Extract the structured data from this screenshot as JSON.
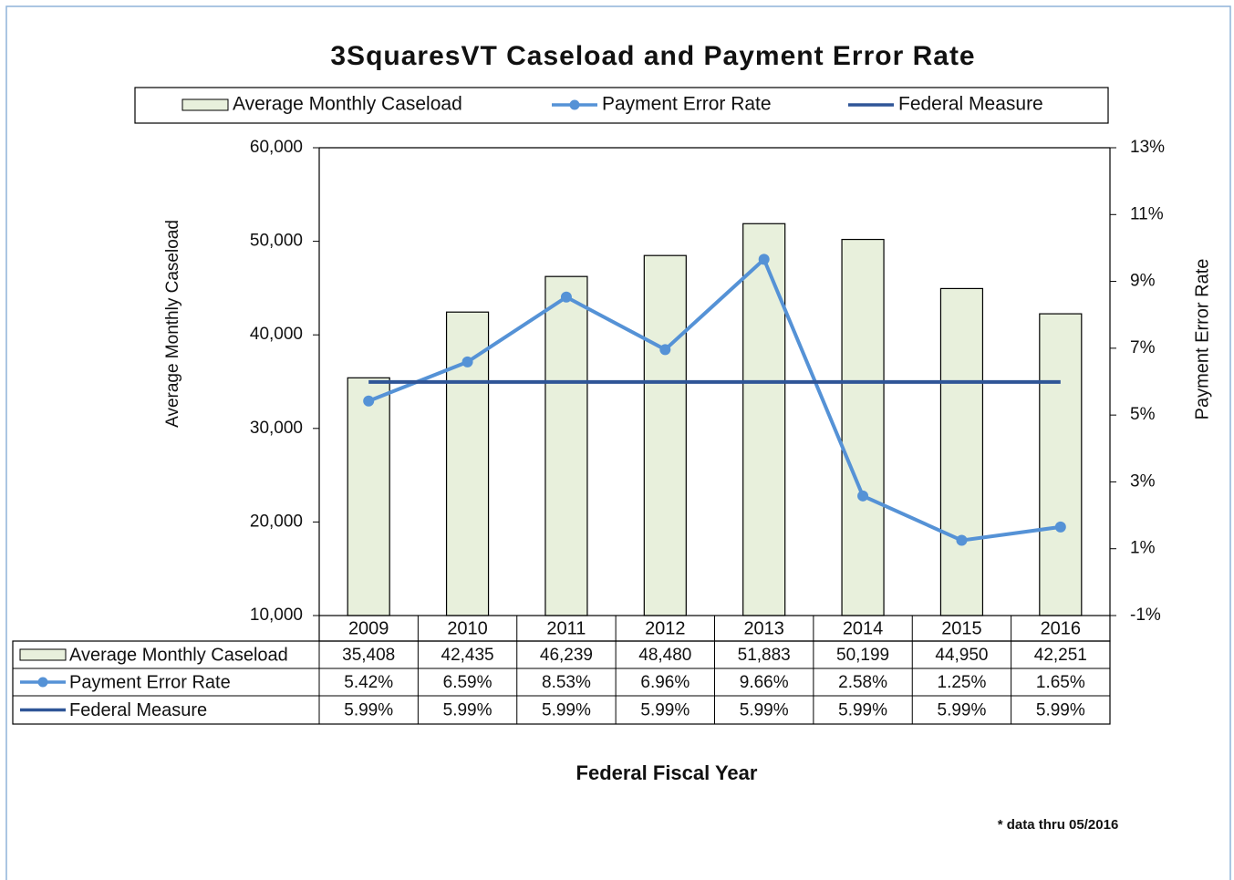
{
  "chart_data": {
    "type": "bar",
    "title": "3SquaresVT Caseload and Payment Error Rate",
    "x_label": "Federal Fiscal Year",
    "y_label": "Average Monthly Caseload",
    "y2_label": "Payment Error Rate",
    "note": "* data thru 05/2016",
    "categories": [
      "2009",
      "2010",
      "2011",
      "2012",
      "2013",
      "2014",
      "2015",
      "2016"
    ],
    "series": [
      {
        "name": "Average Monthly Caseload",
        "type": "bar",
        "color": "#e8f0dc",
        "values": [
          35408,
          42435,
          46239,
          48480,
          51883,
          50199,
          44950,
          42251
        ],
        "value_labels": [
          "35,408",
          "42,435",
          "46,239",
          "48,480",
          "51,883",
          "50,199",
          "44,950",
          "42,251"
        ]
      },
      {
        "name": "Payment Error Rate",
        "type": "line",
        "axis": "y2",
        "color": "#5592d6",
        "marker": true,
        "values": [
          5.42,
          6.59,
          8.53,
          6.96,
          9.66,
          2.58,
          1.25,
          1.65
        ],
        "value_labels": [
          "5.42%",
          "6.59%",
          "8.53%",
          "6.96%",
          "9.66%",
          "2.58%",
          "1.25%",
          "1.65%"
        ]
      },
      {
        "name": "Federal Measure",
        "type": "line",
        "axis": "y2",
        "color": "#2f5597",
        "marker": false,
        "values": [
          5.99,
          5.99,
          5.99,
          5.99,
          5.99,
          5.99,
          5.99,
          5.99
        ],
        "value_labels": [
          "5.99%",
          "5.99%",
          "5.99%",
          "5.99%",
          "5.99%",
          "5.99%",
          "5.99%",
          "5.99%"
        ]
      }
    ],
    "ylim": [
      10000,
      60000
    ],
    "yticks": [
      {
        "value": 10000,
        "label": "10,000"
      },
      {
        "value": 20000,
        "label": "20,000"
      },
      {
        "value": 30000,
        "label": "30,000"
      },
      {
        "value": 40000,
        "label": "40,000"
      },
      {
        "value": 50000,
        "label": "50,000"
      },
      {
        "value": 60000,
        "label": "60,000"
      }
    ],
    "y2lim": [
      -1,
      13
    ],
    "y2ticks": [
      {
        "value": -1,
        "label": "-1%"
      },
      {
        "value": 1,
        "label": "1%"
      },
      {
        "value": 3,
        "label": "3%"
      },
      {
        "value": 5,
        "label": "5%"
      },
      {
        "value": 7,
        "label": "7%"
      },
      {
        "value": 9,
        "label": "9%"
      },
      {
        "value": 11,
        "label": "11%"
      },
      {
        "value": 13,
        "label": "13%"
      }
    ]
  }
}
